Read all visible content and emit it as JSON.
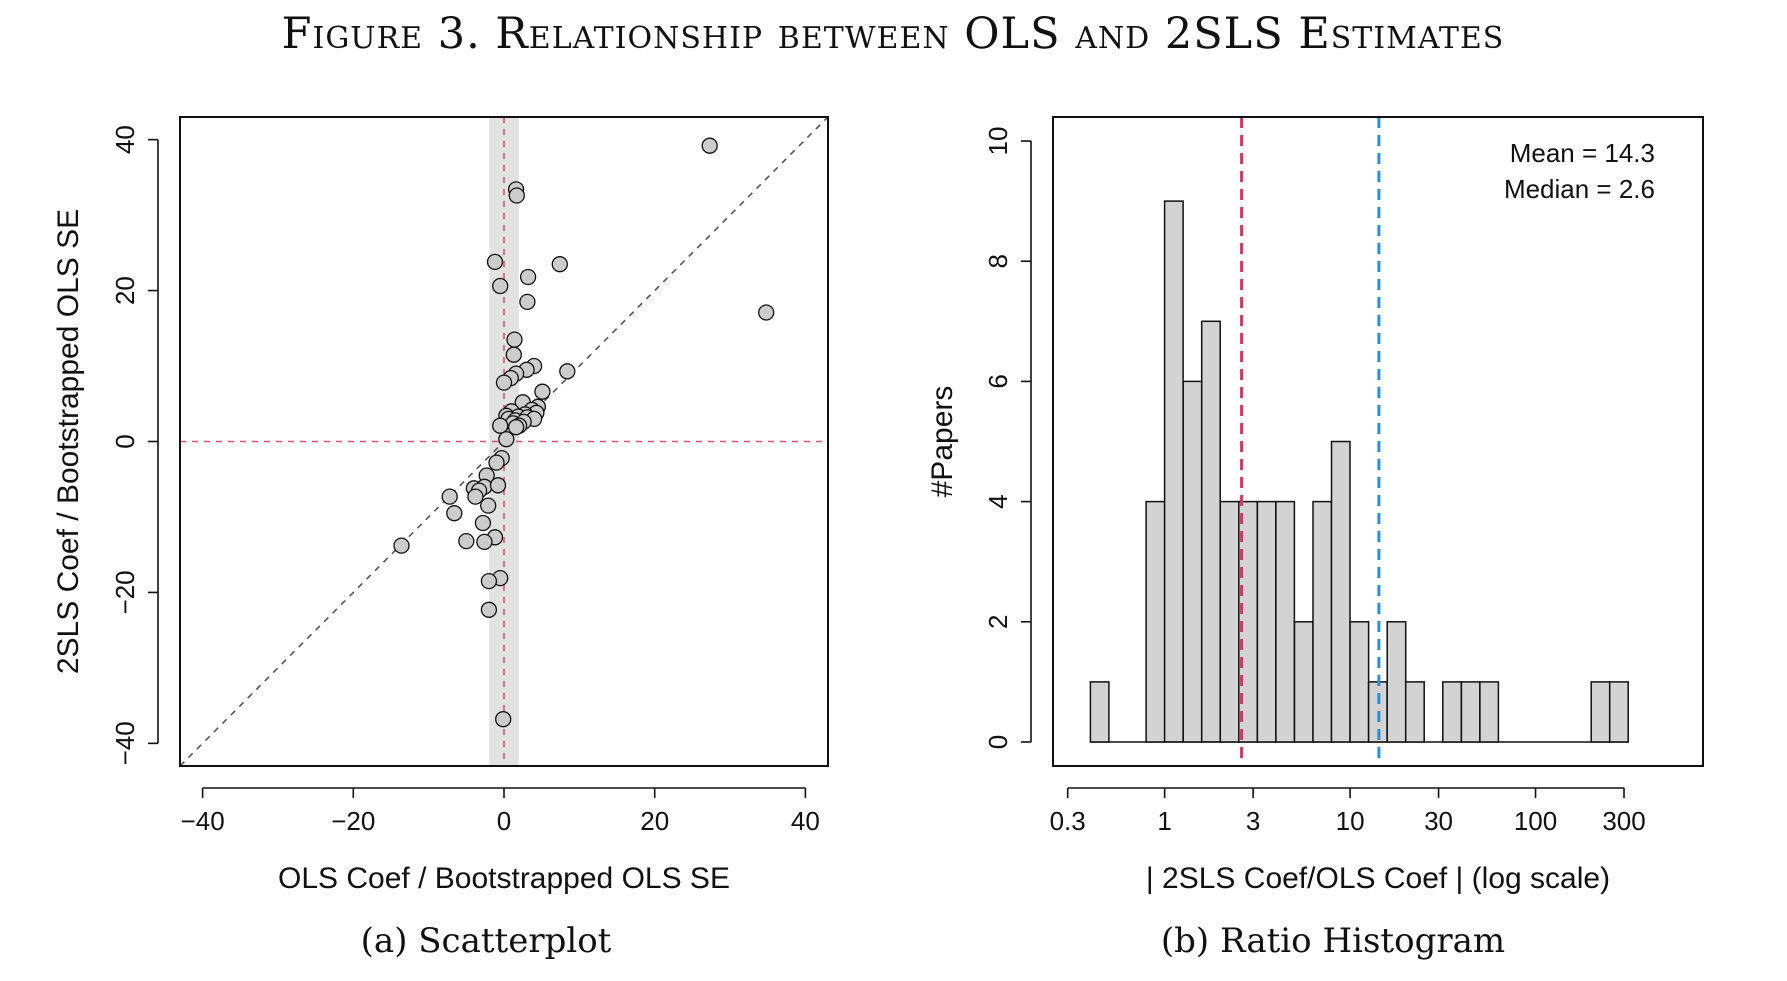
{
  "figure": {
    "title": "Figure 3. Relationship between OLS and 2SLS Estimates",
    "captions": [
      "(a) Scatterplot",
      "(b) Ratio Histogram"
    ]
  },
  "chart_data": [
    {
      "type": "scatter",
      "caption": "(a) Scatterplot",
      "xlabel": "OLS Coef / Bootstrapped OLS SE",
      "ylabel": "2SLS Coef / Bootstrapped OLS SE",
      "xlim": [
        -43,
        43
      ],
      "ylim": [
        -43,
        43
      ],
      "xticks": [
        -40,
        -20,
        0,
        20,
        40
      ],
      "yticks": [
        -40,
        -20,
        0,
        20,
        40
      ],
      "xtick_labels": [
        "−40",
        "−20",
        "0",
        "20",
        "40"
      ],
      "ytick_labels": [
        "−40",
        "−20",
        "0",
        "20",
        "40"
      ],
      "grid": false,
      "reference_lines": {
        "diagonal_45deg": true,
        "horizontal_y0": true,
        "vertical_x0": true
      },
      "shaded_band_x": [
        -1.96,
        1.96
      ],
      "colors": {
        "points_fill": "#cccccc",
        "points_stroke": "#111111",
        "zero_lines": "#d9536e",
        "diagonal": "#555555",
        "band": "#e2e2e2"
      },
      "points": [
        [
          27.3,
          39.2
        ],
        [
          1.6,
          33.4
        ],
        [
          1.7,
          32.6
        ],
        [
          -1.2,
          23.8
        ],
        [
          -0.5,
          20.6
        ],
        [
          7.4,
          23.5
        ],
        [
          3.2,
          21.8
        ],
        [
          3.1,
          18.5
        ],
        [
          34.8,
          17.1
        ],
        [
          1.4,
          13.5
        ],
        [
          1.3,
          11.5
        ],
        [
          4.0,
          10.0
        ],
        [
          3.0,
          9.5
        ],
        [
          8.4,
          9.3
        ],
        [
          1.6,
          9.0
        ],
        [
          0.9,
          8.4
        ],
        [
          0.0,
          7.8
        ],
        [
          5.1,
          6.6
        ],
        [
          2.5,
          5.2
        ],
        [
          4.5,
          4.6
        ],
        [
          3.7,
          4.2
        ],
        [
          1.0,
          4.0
        ],
        [
          4.3,
          3.8
        ],
        [
          2.8,
          3.6
        ],
        [
          0.3,
          3.4
        ],
        [
          1.9,
          3.3
        ],
        [
          3.1,
          3.2
        ],
        [
          0.6,
          3.0
        ],
        [
          4.0,
          3.0
        ],
        [
          1.5,
          2.8
        ],
        [
          2.6,
          2.6
        ],
        [
          1.2,
          2.4
        ],
        [
          -0.5,
          2.1
        ],
        [
          2.0,
          2.1
        ],
        [
          1.6,
          1.9
        ],
        [
          0.3,
          0.3
        ],
        [
          -0.3,
          -2.2
        ],
        [
          -1.0,
          -2.8
        ],
        [
          -2.3,
          -4.5
        ],
        [
          -4.0,
          -6.2
        ],
        [
          -2.6,
          -6.0
        ],
        [
          -3.3,
          -6.5
        ],
        [
          -0.8,
          -5.8
        ],
        [
          -3.8,
          -7.3
        ],
        [
          -7.2,
          -7.3
        ],
        [
          -2.1,
          -8.5
        ],
        [
          -6.6,
          -9.5
        ],
        [
          -2.8,
          -10.8
        ],
        [
          -1.2,
          -12.7
        ],
        [
          -5.0,
          -13.2
        ],
        [
          -2.6,
          -13.3
        ],
        [
          -13.6,
          -13.8
        ],
        [
          -0.5,
          -18.1
        ],
        [
          -2.0,
          -18.5
        ],
        [
          -2.0,
          -22.3
        ],
        [
          -0.1,
          -36.8
        ]
      ]
    },
    {
      "type": "bar",
      "subtype": "histogram",
      "caption": "(b) Ratio Histogram",
      "xlabel": "| 2SLS Coef/OLS Coef | (log scale)",
      "ylabel": "#Papers",
      "x_scale": "log",
      "xlim": [
        0.25,
        800
      ],
      "ylim": [
        -0.4,
        10.4
      ],
      "xticks": [
        0.3,
        1,
        3,
        10,
        30,
        100,
        300
      ],
      "xtick_labels": [
        "0.3",
        "1",
        "3",
        "10",
        "30",
        "100",
        "300"
      ],
      "yticks": [
        0,
        2,
        4,
        6,
        8,
        10
      ],
      "ytick_labels": [
        "0",
        "2",
        "4",
        "6",
        "8",
        "10"
      ],
      "grid": false,
      "bins": [
        {
          "from": 0.398,
          "to": 0.501,
          "count": 1
        },
        {
          "from": 0.501,
          "to": 0.631,
          "count": 0
        },
        {
          "from": 0.631,
          "to": 0.794,
          "count": 0
        },
        {
          "from": 0.794,
          "to": 1.0,
          "count": 4
        },
        {
          "from": 1.0,
          "to": 1.259,
          "count": 9
        },
        {
          "from": 1.259,
          "to": 1.585,
          "count": 6
        },
        {
          "from": 1.585,
          "to": 1.995,
          "count": 7
        },
        {
          "from": 1.995,
          "to": 2.512,
          "count": 4
        },
        {
          "from": 2.512,
          "to": 3.162,
          "count": 4
        },
        {
          "from": 3.162,
          "to": 3.981,
          "count": 4
        },
        {
          "from": 3.981,
          "to": 5.012,
          "count": 4
        },
        {
          "from": 5.012,
          "to": 6.31,
          "count": 2
        },
        {
          "from": 6.31,
          "to": 7.943,
          "count": 4
        },
        {
          "from": 7.943,
          "to": 10.0,
          "count": 5
        },
        {
          "from": 10.0,
          "to": 12.589,
          "count": 2
        },
        {
          "from": 12.589,
          "to": 15.849,
          "count": 1
        },
        {
          "from": 15.849,
          "to": 19.953,
          "count": 2
        },
        {
          "from": 19.953,
          "to": 25.119,
          "count": 1
        },
        {
          "from": 25.119,
          "to": 31.623,
          "count": 0
        },
        {
          "from": 31.623,
          "to": 39.811,
          "count": 1
        },
        {
          "from": 39.811,
          "to": 50.119,
          "count": 1
        },
        {
          "from": 50.119,
          "to": 63.096,
          "count": 1
        },
        {
          "from": 63.096,
          "to": 79.433,
          "count": 0
        },
        {
          "from": 79.433,
          "to": 100.0,
          "count": 0
        },
        {
          "from": 100.0,
          "to": 125.893,
          "count": 0
        },
        {
          "from": 125.893,
          "to": 158.489,
          "count": 0
        },
        {
          "from": 158.489,
          "to": 199.526,
          "count": 0
        },
        {
          "from": 199.526,
          "to": 251.189,
          "count": 1
        },
        {
          "from": 251.189,
          "to": 316.228,
          "count": 1
        }
      ],
      "reference_lines": [
        {
          "label": "Median",
          "value": 2.6,
          "color": "#d9345a"
        },
        {
          "label": "Mean",
          "value": 14.3,
          "color": "#2a8fd8"
        }
      ],
      "annotations": [
        "Mean = 14.3",
        "Median = 2.6"
      ],
      "legend_position": "top-right",
      "colors": {
        "bar_fill": "#d3d3d3",
        "bar_stroke": "#111111"
      }
    }
  ]
}
